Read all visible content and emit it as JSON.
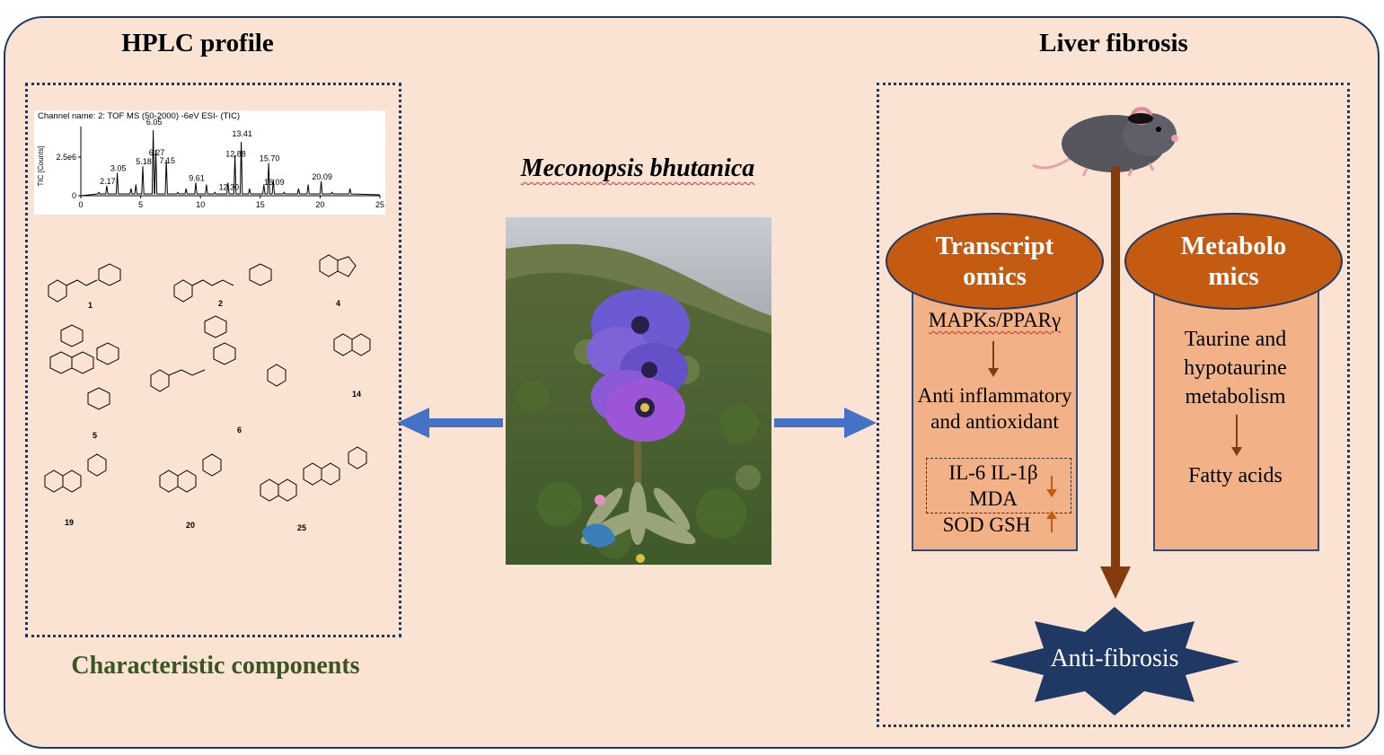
{
  "titles": {
    "left": "HPLC profile",
    "right": "Liver fibrosis",
    "center": "Meconopsis bhutanica",
    "bottom_left": "Characteristic components"
  },
  "chromatogram": {
    "channel": "Channel name: 2: TOF MS (50-2000) -6eV ESI- (TIC)",
    "ylabel": "TIC [Counts]",
    "y_ticks": [
      "2.5e6",
      "0"
    ],
    "x_ticks": [
      "0",
      "5",
      "10",
      "15",
      "20",
      "25"
    ],
    "peaks": [
      {
        "rt": 2.17,
        "label": "2.17"
      },
      {
        "rt": 3.05,
        "label": "3.05"
      },
      {
        "rt": 5.18,
        "label": "5.18"
      },
      {
        "rt": 6.05,
        "label": "6.05"
      },
      {
        "rt": 6.27,
        "label": "6.27"
      },
      {
        "rt": 7.15,
        "label": "7.15"
      },
      {
        "rt": 9.61,
        "label": "9.61"
      },
      {
        "rt": 12.3,
        "label": "12.30"
      },
      {
        "rt": 12.88,
        "label": "12.88"
      },
      {
        "rt": 13.41,
        "label": "13.41"
      },
      {
        "rt": 15.7,
        "label": "15.70"
      },
      {
        "rt": 16.09,
        "label": "16.09"
      },
      {
        "rt": 20.09,
        "label": "20.09"
      }
    ]
  },
  "compounds": [
    "1",
    "2",
    "4",
    "5",
    "6",
    "14",
    "19",
    "20",
    "25"
  ],
  "transcriptomics": {
    "header": "Transcript omics",
    "pathway": "MAPKs/PPARγ",
    "effect": "Anti inflammatory and antioxidant",
    "markers_down": "IL-6 IL-1β MDA",
    "markers_up": "SOD GSH"
  },
  "metabolomics": {
    "header": "Metabolo mics",
    "pathway": "Taurine and hypotaurine metabolism",
    "result": "Fatty acids"
  },
  "outcome": "Anti-fibrosis",
  "colors": {
    "background": "#fbe3d4",
    "ellipse": "#c55a11",
    "card": "#f2b187",
    "arrow_blue": "#4472c4",
    "arrow_brown": "#843c0c",
    "star": "#203864"
  }
}
